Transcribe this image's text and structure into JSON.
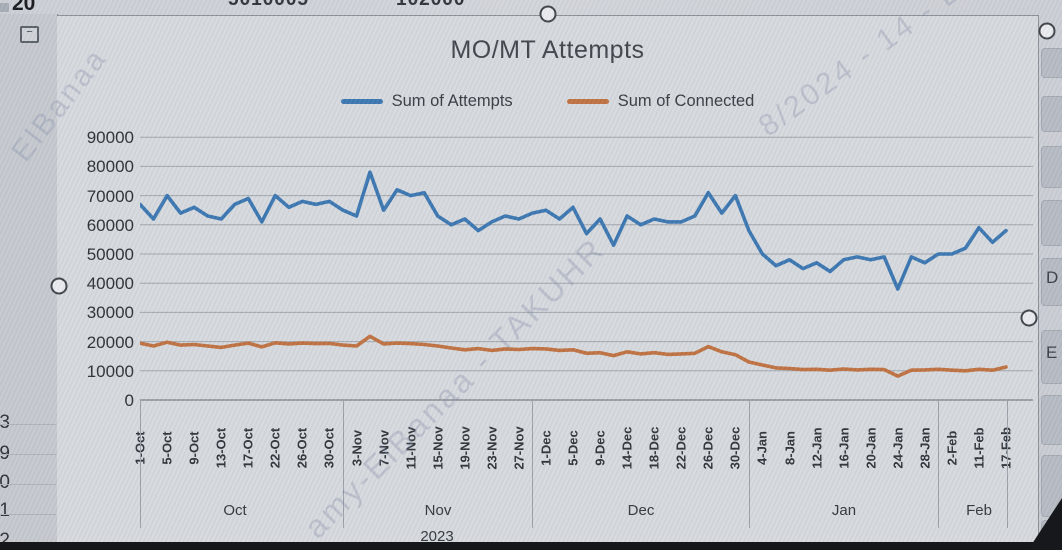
{
  "chart_data": {
    "type": "line",
    "title": "MO/MT Attempts",
    "legend_position": "top",
    "grid": true,
    "ylim": [
      0,
      90000
    ],
    "ytick_step": 10000,
    "y_ticks": [
      "90000",
      "80000",
      "70000",
      "60000",
      "50000",
      "40000",
      "30000",
      "20000",
      "10000",
      "0"
    ],
    "categories": [
      "1-Oct",
      "5-Oct",
      "9-Oct",
      "13-Oct",
      "17-Oct",
      "22-Oct",
      "26-Oct",
      "30-Oct",
      "3-Nov",
      "7-Nov",
      "11-Nov",
      "15-Nov",
      "19-Nov",
      "23-Nov",
      "27-Nov",
      "1-Dec",
      "5-Dec",
      "9-Dec",
      "14-Dec",
      "18-Dec",
      "22-Dec",
      "26-Dec",
      "30-Dec",
      "4-Jan",
      "8-Jan",
      "12-Jan",
      "16-Jan",
      "20-Jan",
      "24-Jan",
      "28-Jan",
      "2-Feb",
      "11-Feb",
      "17-Feb"
    ],
    "points_per_category": 2,
    "month_groups": [
      {
        "label": "Oct",
        "count": 8
      },
      {
        "label": "Nov",
        "count": 7
      },
      {
        "label": "Dec",
        "count": 8
      },
      {
        "label": "Jan",
        "count": 7
      },
      {
        "label": "Feb",
        "count": 3
      }
    ],
    "year_label": "2023",
    "series": [
      {
        "name": "Sum of Attempts",
        "color": "#3b76b1",
        "values": [
          67000,
          62000,
          70000,
          64000,
          66000,
          63000,
          62000,
          67000,
          69000,
          61000,
          70000,
          66000,
          68000,
          67000,
          68000,
          65000,
          63000,
          78000,
          65000,
          72000,
          70000,
          71000,
          63000,
          60000,
          62000,
          58000,
          61000,
          63000,
          62000,
          64000,
          65000,
          62000,
          66000,
          57000,
          62000,
          53000,
          63000,
          60000,
          62000,
          61000,
          61000,
          63000,
          71000,
          64000,
          70000,
          58000,
          50000,
          46000,
          48000,
          45000,
          47000,
          44000,
          48000,
          49000,
          48000,
          49000,
          38000,
          49000,
          47000,
          50000,
          50000,
          52000,
          59000,
          54000,
          58000
        ]
      },
      {
        "name": "Sum of Connected",
        "color": "#bf7140",
        "values": [
          19500,
          18500,
          19800,
          18800,
          19000,
          18500,
          18000,
          18800,
          19500,
          18200,
          19600,
          19200,
          19500,
          19300,
          19400,
          18800,
          18500,
          21800,
          19200,
          19500,
          19300,
          19000,
          18500,
          17800,
          17200,
          17600,
          17000,
          17500,
          17300,
          17600,
          17500,
          17000,
          17200,
          16000,
          16200,
          15200,
          16500,
          15800,
          16200,
          15600,
          15800,
          16000,
          18300,
          16500,
          15500,
          13000,
          12000,
          11000,
          10800,
          10400,
          10500,
          10200,
          10600,
          10300,
          10500,
          10400,
          8200,
          10200,
          10300,
          10500,
          10200,
          10000,
          10500,
          10200,
          11300
        ]
      }
    ]
  },
  "spreadsheet": {
    "top_left_value": "20",
    "top_cropped_values": [
      "5010005",
      "102000"
    ],
    "collapse_button": "−",
    "row_numbers_partial": [
      "3",
      "9",
      "0",
      "1",
      "2"
    ],
    "right_column_letters": [
      "D",
      "E"
    ]
  },
  "watermarks": [
    "ElBanaa",
    "amy-ElBanaa - TAKUHR",
    "8/2024 - 14 - D"
  ]
}
